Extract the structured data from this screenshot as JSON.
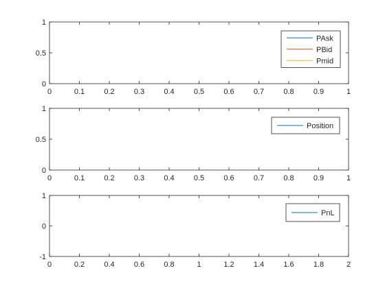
{
  "chart_data": [
    {
      "type": "line",
      "xlim": [
        0,
        1
      ],
      "ylim": [
        0,
        1
      ],
      "xticks": [
        "0",
        "0.1",
        "0.2",
        "0.3",
        "0.4",
        "0.5",
        "0.6",
        "0.7",
        "0.8",
        "0.9",
        "1"
      ],
      "yticks": [
        "0",
        "0.5",
        "1"
      ],
      "grid": false,
      "legend_position": "top-right",
      "series": [
        {
          "name": "PAsk",
          "color": "#0072BD",
          "x": [],
          "y": []
        },
        {
          "name": "PBid",
          "color": "#D95319",
          "x": [],
          "y": []
        },
        {
          "name": "Pmid",
          "color": "#EDB120",
          "x": [],
          "y": []
        }
      ]
    },
    {
      "type": "line",
      "xlim": [
        0,
        1
      ],
      "ylim": [
        0,
        1
      ],
      "xticks": [
        "0",
        "0.1",
        "0.2",
        "0.3",
        "0.4",
        "0.5",
        "0.6",
        "0.7",
        "0.8",
        "0.9",
        "1"
      ],
      "yticks": [
        "0",
        "0.5",
        "1"
      ],
      "grid": false,
      "legend_position": "top-right",
      "series": [
        {
          "name": "Position",
          "color": "#0072BD",
          "x": [],
          "y": []
        }
      ]
    },
    {
      "type": "line",
      "xlim": [
        0,
        2
      ],
      "ylim": [
        -1,
        1
      ],
      "xticks": [
        "0",
        "0.2",
        "0.4",
        "0.6",
        "0.8",
        "1",
        "1.2",
        "1.4",
        "1.6",
        "1.8",
        "2"
      ],
      "yticks": [
        "-1",
        "0",
        "1"
      ],
      "grid": false,
      "legend_position": "top-right",
      "series": [
        {
          "name": "PnL",
          "color": "#0072BD",
          "x": [],
          "y": []
        }
      ]
    }
  ]
}
